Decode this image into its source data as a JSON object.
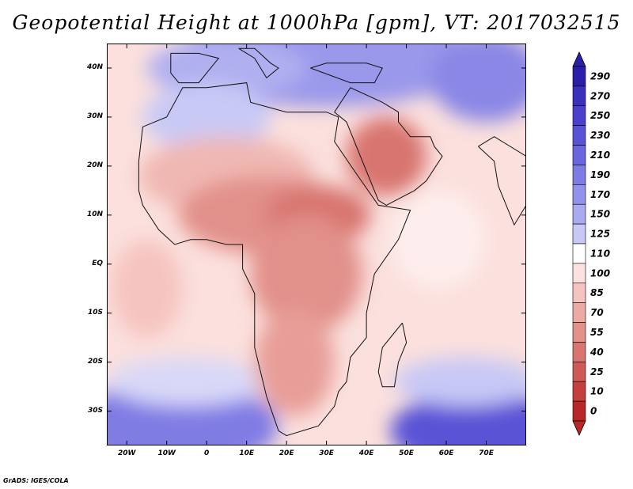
{
  "title": "Geopotential Height at 1000hPa [gpm], VT: 2017032515",
  "footer": "GrADS: IGES/COLA",
  "axes": {
    "lon_range": [
      -25,
      80
    ],
    "lat_range": [
      -37,
      45
    ],
    "lat_ticks": [
      {
        "value": 40,
        "label": "40N"
      },
      {
        "value": 30,
        "label": "30N"
      },
      {
        "value": 20,
        "label": "20N"
      },
      {
        "value": 10,
        "label": "10N"
      },
      {
        "value": 0,
        "label": "EQ"
      },
      {
        "value": -10,
        "label": "10S"
      },
      {
        "value": -20,
        "label": "20S"
      },
      {
        "value": -30,
        "label": "30S"
      }
    ],
    "lon_ticks": [
      {
        "value": -20,
        "label": "20W"
      },
      {
        "value": -10,
        "label": "10W"
      },
      {
        "value": 0,
        "label": "0"
      },
      {
        "value": 10,
        "label": "10E"
      },
      {
        "value": 20,
        "label": "20E"
      },
      {
        "value": 30,
        "label": "30E"
      },
      {
        "value": 40,
        "label": "40E"
      },
      {
        "value": 50,
        "label": "50E"
      },
      {
        "value": 60,
        "label": "60E"
      },
      {
        "value": 70,
        "label": "70E"
      }
    ]
  },
  "colorbar": {
    "labels": [
      "290",
      "270",
      "250",
      "230",
      "210",
      "190",
      "170",
      "150",
      "125",
      "110",
      "100",
      "85",
      "70",
      "55",
      "40",
      "25",
      "10",
      "0"
    ],
    "colors": [
      "#2a1fa6",
      "#3a30bb",
      "#4a40cc",
      "#5a52d6",
      "#6c66de",
      "#7f7be4",
      "#9391ea",
      "#aaaaf0",
      "#c8c8f6",
      "#ffffff",
      "#fbe2e0",
      "#f6c4c0",
      "#ecaaa4",
      "#e2908a",
      "#d87570",
      "#ce5a58",
      "#c44040",
      "#b82828"
    ]
  },
  "field": {
    "background_color": "#fbe0dd",
    "regions": [
      {
        "name": "north-high",
        "lon": 30,
        "lat": 42,
        "rx": 38,
        "ry": 10,
        "color": "#9a98ea"
      },
      {
        "name": "europe-high",
        "lon": 5,
        "lat": 40,
        "rx": 20,
        "ry": 6,
        "color": "#b0aff0"
      },
      {
        "name": "sahara-high",
        "lon": 0,
        "lat": 30,
        "rx": 16,
        "ry": 7,
        "color": "#c9c9f6"
      },
      {
        "name": "northeast-high",
        "lon": 70,
        "lat": 38,
        "rx": 14,
        "ry": 9,
        "color": "#8a87e6"
      },
      {
        "name": "south-high-west",
        "lon": -8,
        "lat": -33,
        "rx": 26,
        "ry": 9,
        "color": "#7f7be4"
      },
      {
        "name": "south-high-east",
        "lon": 68,
        "lat": -34,
        "rx": 22,
        "ry": 8,
        "color": "#5a52d6"
      },
      {
        "name": "southwest-light",
        "lon": -5,
        "lat": -24,
        "rx": 20,
        "ry": 5,
        "color": "#d9d8f8"
      },
      {
        "name": "southeast-light",
        "lon": 65,
        "lat": -24,
        "rx": 18,
        "ry": 5,
        "color": "#c8c8f6"
      },
      {
        "name": "west-africa-low",
        "lon": 5,
        "lat": 18,
        "rx": 22,
        "ry": 8,
        "color": "#f0b8b2"
      },
      {
        "name": "sahel-low",
        "lon": 15,
        "lat": 10,
        "rx": 22,
        "ry": 8,
        "color": "#e2908a"
      },
      {
        "name": "central-low",
        "lon": 28,
        "lat": 10,
        "rx": 13,
        "ry": 6,
        "color": "#d87570"
      },
      {
        "name": "arabia-low",
        "lon": 45,
        "lat": 22,
        "rx": 10,
        "ry": 8,
        "color": "#d87570"
      },
      {
        "name": "congo-low",
        "lon": 25,
        "lat": -2,
        "rx": 14,
        "ry": 12,
        "color": "#e2908a"
      },
      {
        "name": "southern-africa-low",
        "lon": 22,
        "lat": -20,
        "rx": 10,
        "ry": 11,
        "color": "#e89e98"
      },
      {
        "name": "indian-ocean-mid",
        "lon": 58,
        "lat": 5,
        "rx": 12,
        "ry": 10,
        "color": "#fdeeed"
      },
      {
        "name": "atlantic-mid",
        "lon": -15,
        "lat": -5,
        "rx": 9,
        "ry": 10,
        "color": "#f6c4c0"
      }
    ]
  },
  "coastlines": {
    "africa": [
      [
        -17,
        21
      ],
      [
        -16,
        28
      ],
      [
        -10,
        30
      ],
      [
        -6,
        36
      ],
      [
        0,
        36
      ],
      [
        10,
        37
      ],
      [
        11,
        33
      ],
      [
        20,
        31
      ],
      [
        30,
        31
      ],
      [
        33,
        30
      ],
      [
        32,
        25
      ],
      [
        37,
        19
      ],
      [
        43,
        12
      ],
      [
        51,
        11
      ],
      [
        48,
        5
      ],
      [
        42,
        -2
      ],
      [
        40,
        -10
      ],
      [
        40,
        -15
      ],
      [
        36,
        -19
      ],
      [
        35,
        -24
      ],
      [
        33,
        -26
      ],
      [
        32,
        -29
      ],
      [
        28,
        -33
      ],
      [
        20,
        -35
      ],
      [
        18,
        -34
      ],
      [
        15,
        -27
      ],
      [
        12,
        -17
      ],
      [
        12,
        -6
      ],
      [
        9,
        -1
      ],
      [
        9,
        4
      ],
      [
        5,
        4
      ],
      [
        0,
        5
      ],
      [
        -4,
        5
      ],
      [
        -8,
        4
      ],
      [
        -12,
        7
      ],
      [
        -16,
        12
      ],
      [
        -17,
        15
      ],
      [
        -17,
        21
      ]
    ],
    "arabia": [
      [
        32,
        31
      ],
      [
        35,
        29
      ],
      [
        39,
        21
      ],
      [
        43,
        13
      ],
      [
        45,
        12
      ],
      [
        52,
        15
      ],
      [
        55,
        17
      ],
      [
        59,
        22
      ],
      [
        57,
        24
      ],
      [
        56,
        26
      ],
      [
        51,
        26
      ],
      [
        48,
        29
      ],
      [
        48,
        31
      ],
      [
        44,
        33
      ],
      [
        36,
        36
      ],
      [
        32,
        31
      ]
    ],
    "madagascar": [
      [
        49,
        -12
      ],
      [
        50,
        -16
      ],
      [
        48,
        -20
      ],
      [
        47,
        -25
      ],
      [
        44,
        -25
      ],
      [
        43,
        -22
      ],
      [
        44,
        -17
      ],
      [
        47,
        -14
      ],
      [
        49,
        -12
      ]
    ],
    "iberia": [
      [
        -9,
        43
      ],
      [
        -9,
        39
      ],
      [
        -7,
        37
      ],
      [
        -2,
        37
      ],
      [
        0,
        39
      ],
      [
        3,
        42
      ],
      [
        -2,
        43
      ],
      [
        -9,
        43
      ]
    ],
    "italy": [
      [
        8,
        44
      ],
      [
        12,
        44
      ],
      [
        16,
        41
      ],
      [
        18,
        40
      ],
      [
        15,
        38
      ],
      [
        12,
        42
      ],
      [
        8,
        44
      ]
    ],
    "anatolia": [
      [
        26,
        40
      ],
      [
        36,
        37
      ],
      [
        42,
        37
      ],
      [
        44,
        40
      ],
      [
        40,
        41
      ],
      [
        30,
        41
      ],
      [
        26,
        40
      ]
    ],
    "india": [
      [
        68,
        24
      ],
      [
        72,
        21
      ],
      [
        73,
        16
      ],
      [
        77,
        8
      ],
      [
        80,
        12
      ],
      [
        80,
        22
      ],
      [
        72,
        26
      ],
      [
        68,
        24
      ]
    ]
  }
}
